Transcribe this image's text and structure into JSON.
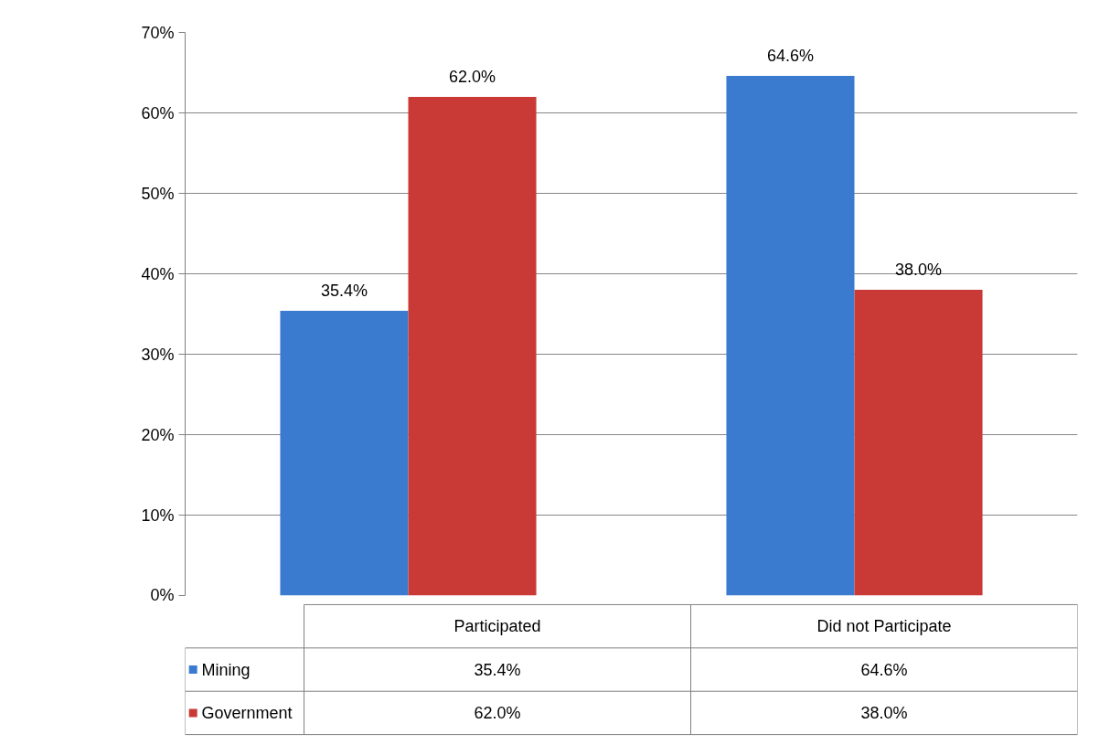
{
  "chart_data": {
    "type": "bar",
    "categories": [
      "Participated",
      "Did not Participate"
    ],
    "series": [
      {
        "name": "Mining",
        "color": "#3a7bd0",
        "values": [
          35.4,
          64.6
        ],
        "value_labels": [
          "35.4%",
          "64.6%"
        ]
      },
      {
        "name": "Government",
        "color": "#c93a36",
        "values": [
          62.0,
          38.0
        ],
        "value_labels": [
          "62.0%",
          "38.0%"
        ]
      }
    ],
    "ylim": [
      0,
      70
    ],
    "yticks": [
      {
        "value": 0,
        "label": "0%"
      },
      {
        "value": 10,
        "label": "10%"
      },
      {
        "value": 20,
        "label": "20%"
      },
      {
        "value": 30,
        "label": "30%"
      },
      {
        "value": 40,
        "label": "40%"
      },
      {
        "value": 50,
        "label": "50%"
      },
      {
        "value": 60,
        "label": "60%"
      },
      {
        "value": 70,
        "label": "70%"
      }
    ],
    "grid": "y",
    "legend": "bottom left"
  }
}
